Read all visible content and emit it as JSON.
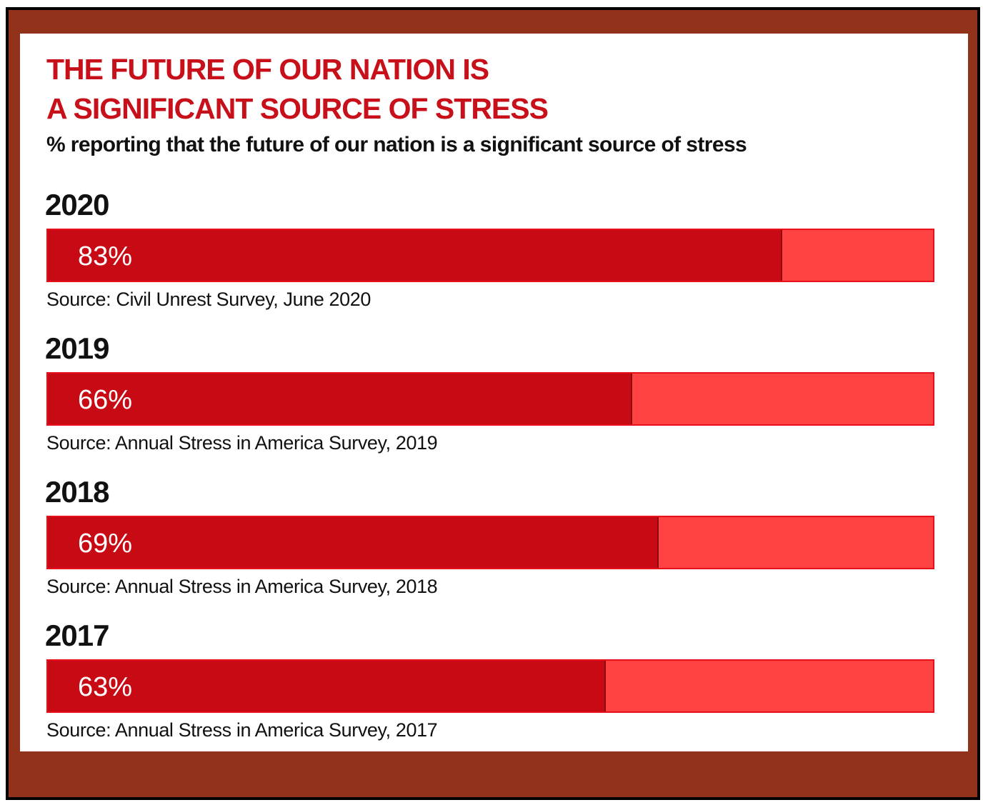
{
  "chart_data": {
    "type": "bar",
    "title": [
      "THE FUTURE OF OUR NATION IS",
      "A SIGNIFICANT SOURCE OF STRESS"
    ],
    "subtitle": "% reporting that the future of our nation is a significant source of stress",
    "categories": [
      "2020",
      "2019",
      "2018",
      "2017"
    ],
    "values": [
      83,
      66,
      69,
      63
    ],
    "value_labels": [
      "83%",
      "66%",
      "69%",
      "63%"
    ],
    "sources": [
      "Source: Civil Unrest Survey, June 2020",
      "Source: Annual Stress in America Survey, 2019",
      "Source: Annual Stress in America Survey, 2018",
      "Source: Annual Stress in America Survey, 2017"
    ],
    "xlim": [
      0,
      100
    ],
    "color": "#c80a14",
    "track_color": "#ff4343"
  }
}
